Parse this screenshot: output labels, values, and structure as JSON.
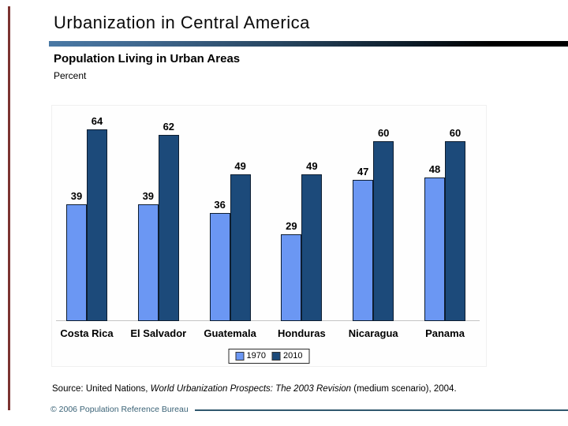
{
  "slide": {
    "title": "Urbanization in Central America",
    "chart_heading": "Population Living in Urban Areas",
    "chart_unit_label": "Percent",
    "source_prefix": "Source: United Nations, ",
    "source_italic": "World Urbanization Prospects: The 2003 Revision",
    "source_suffix": " (medium scenario), 2004.",
    "footer_copyright": "© 2006 Population Reference Bureau"
  },
  "colors": {
    "series_1970": "#6b97f3",
    "series_2010": "#1c4a7a",
    "bar_outline": "#0d1d30",
    "accent_gradient_left": "#4a79a5",
    "accent_gradient_right": "#000000",
    "left_accent_bar": "#7c3331",
    "axis_line": "#c4c4c4",
    "footer_text": "#3a6276",
    "footer_rule": "#30586e"
  },
  "chart_data": {
    "type": "bar",
    "title": "Population Living in Urban Areas",
    "xlabel": "",
    "ylabel": "Percent",
    "categories": [
      "Costa Rica",
      "El Salvador",
      "Guatemala",
      "Honduras",
      "Nicaragua",
      "Panama"
    ],
    "series": [
      {
        "name": "1970",
        "color": "#6b97f3",
        "values": [
          39,
          39,
          36,
          29,
          47,
          48
        ]
      },
      {
        "name": "2010",
        "color": "#1c4a7a",
        "values": [
          64,
          62,
          49,
          49,
          60,
          60
        ]
      }
    ],
    "ylim": [
      0,
      72
    ],
    "grid": false,
    "data_labels": true,
    "legend_position": "bottom-center"
  }
}
